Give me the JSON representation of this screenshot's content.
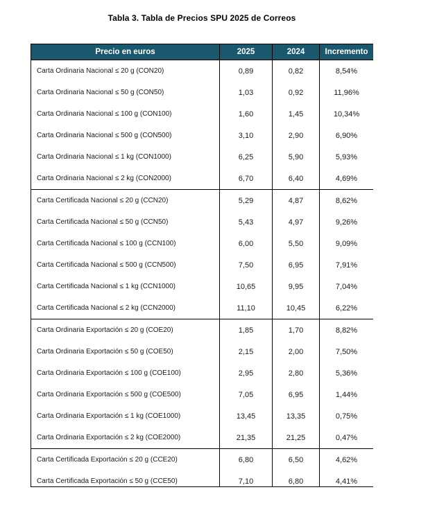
{
  "page": {
    "title": "Tabla 3. Tabla de Precios SPU 2025 de Correos"
  },
  "colors": {
    "header_bg": "#1c586d",
    "header_text": "#ffffff",
    "border": "#000000",
    "body_text": "#1a1a1a",
    "page_bg": "#ffffff"
  },
  "table": {
    "columns": [
      "Precio en euros",
      "2025",
      "2024",
      "Incremento"
    ],
    "rows": [
      {
        "label": "Carta Ordinaria Nacional ≤ 20 g (CON20)",
        "y2025": "0,89",
        "y2024": "0,82",
        "incremento": "8,54%",
        "group_start": false
      },
      {
        "label": "Carta Ordinaria Nacional ≤ 50 g (CON50)",
        "y2025": "1,03",
        "y2024": "0,92",
        "incremento": "11,96%",
        "group_start": false
      },
      {
        "label": "Carta Ordinaria Nacional ≤ 100 g (CON100)",
        "y2025": "1,60",
        "y2024": "1,45",
        "incremento": "10,34%",
        "group_start": false
      },
      {
        "label": "Carta Ordinaria Nacional ≤ 500 g (CON500)",
        "y2025": "3,10",
        "y2024": "2,90",
        "incremento": "6,90%",
        "group_start": false
      },
      {
        "label": "Carta Ordinaria Nacional ≤ 1 kg (CON1000)",
        "y2025": "6,25",
        "y2024": "5,90",
        "incremento": "5,93%",
        "group_start": false
      },
      {
        "label": "Carta Ordinaria Nacional ≤ 2 kg (CON2000)",
        "y2025": "6,70",
        "y2024": "6,40",
        "incremento": "4,69%",
        "group_start": false
      },
      {
        "label": "Carta Certificada Nacional ≤ 20 g (CCN20)",
        "y2025": "5,29",
        "y2024": "4,87",
        "incremento": "8,62%",
        "group_start": true
      },
      {
        "label": "Carta Certificada Nacional ≤ 50 g (CCN50)",
        "y2025": "5,43",
        "y2024": "4,97",
        "incremento": "9,26%",
        "group_start": false
      },
      {
        "label": "Carta Certificada Nacional ≤ 100 g (CCN100)",
        "y2025": "6,00",
        "y2024": "5,50",
        "incremento": "9,09%",
        "group_start": false
      },
      {
        "label": "Carta Certificada Nacional ≤ 500 g (CCN500)",
        "y2025": "7,50",
        "y2024": "6,95",
        "incremento": "7,91%",
        "group_start": false
      },
      {
        "label": "Carta Certificada Nacional ≤ 1 kg (CCN1000)",
        "y2025": "10,65",
        "y2024": "9,95",
        "incremento": "7,04%",
        "group_start": false
      },
      {
        "label": "Carta Certificada Nacional ≤ 2 kg (CCN2000)",
        "y2025": "11,10",
        "y2024": "10,45",
        "incremento": "6,22%",
        "group_start": false
      },
      {
        "label": "Carta Ordinaria Exportación ≤ 20 g (COE20)",
        "y2025": "1,85",
        "y2024": "1,70",
        "incremento": "8,82%",
        "group_start": true
      },
      {
        "label": "Carta Ordinaria Exportación ≤ 50 g (COE50)",
        "y2025": "2,15",
        "y2024": "2,00",
        "incremento": "7,50%",
        "group_start": false
      },
      {
        "label": "Carta Ordinaria Exportación ≤ 100 g (COE100)",
        "y2025": "2,95",
        "y2024": "2,80",
        "incremento": "5,36%",
        "group_start": false
      },
      {
        "label": "Carta Ordinaria Exportación ≤ 500 g (COE500)",
        "y2025": "7,05",
        "y2024": "6,95",
        "incremento": "1,44%",
        "group_start": false
      },
      {
        "label": "Carta Ordinaria Exportación ≤ 1 kg (COE1000)",
        "y2025": "13,45",
        "y2024": "13,35",
        "incremento": "0,75%",
        "group_start": false
      },
      {
        "label": "Carta Ordinaria Exportación ≤ 2 kg (COE2000)",
        "y2025": "21,35",
        "y2024": "21,25",
        "incremento": "0,47%",
        "group_start": false
      },
      {
        "label": "Carta Certificada Exportación ≤ 20 g (CCE20)",
        "y2025": "6,80",
        "y2024": "6,50",
        "incremento": "4,62%",
        "group_start": true
      },
      {
        "label": "Carta Certificada Exportación ≤ 50 g (CCE50)",
        "y2025": "7,10",
        "y2024": "6,80",
        "incremento": "4,41%",
        "group_start": false
      }
    ]
  }
}
